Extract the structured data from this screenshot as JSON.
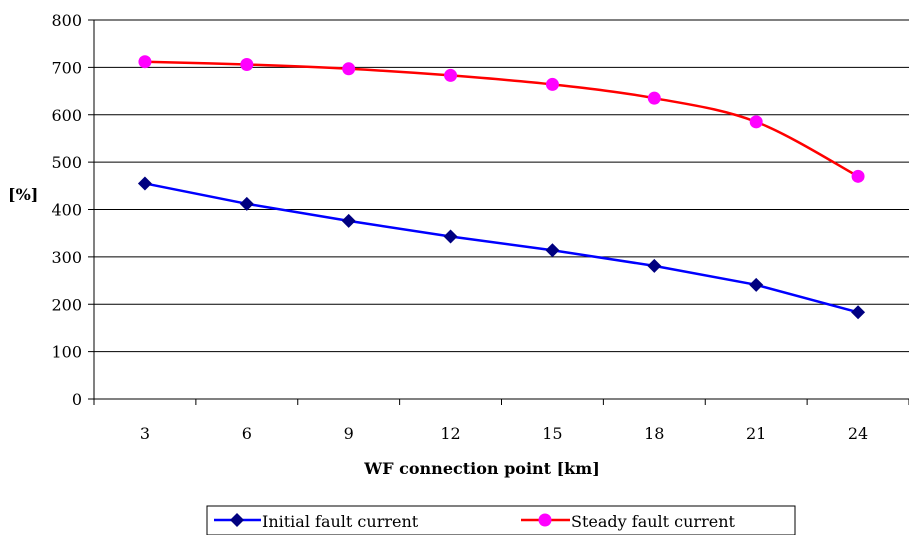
{
  "chart_data": {
    "type": "line",
    "title": "",
    "xlabel": "WF connection point [km]",
    "ylabel": "[%]",
    "categories": [
      "3",
      "6",
      "9",
      "12",
      "15",
      "18",
      "21",
      "24"
    ],
    "ylim": [
      0,
      800
    ],
    "yticks": [
      "0",
      "100",
      "200",
      "300",
      "400",
      "500",
      "600",
      "700",
      "800"
    ],
    "grid": true,
    "legend_position": "bottom",
    "series": [
      {
        "name": "Initial fault current",
        "values": [
          455,
          412,
          376,
          343,
          314,
          281,
          241,
          183
        ],
        "color": "#0000ff",
        "marker_color": "#000080",
        "marker": "diamond",
        "smooth": false
      },
      {
        "name": "Steady fault  current",
        "values": [
          712,
          706,
          697,
          683,
          664,
          635,
          585,
          470
        ],
        "color": "#ff0000",
        "marker_color": "#ff00ff",
        "marker": "circle",
        "smooth": true
      }
    ]
  }
}
